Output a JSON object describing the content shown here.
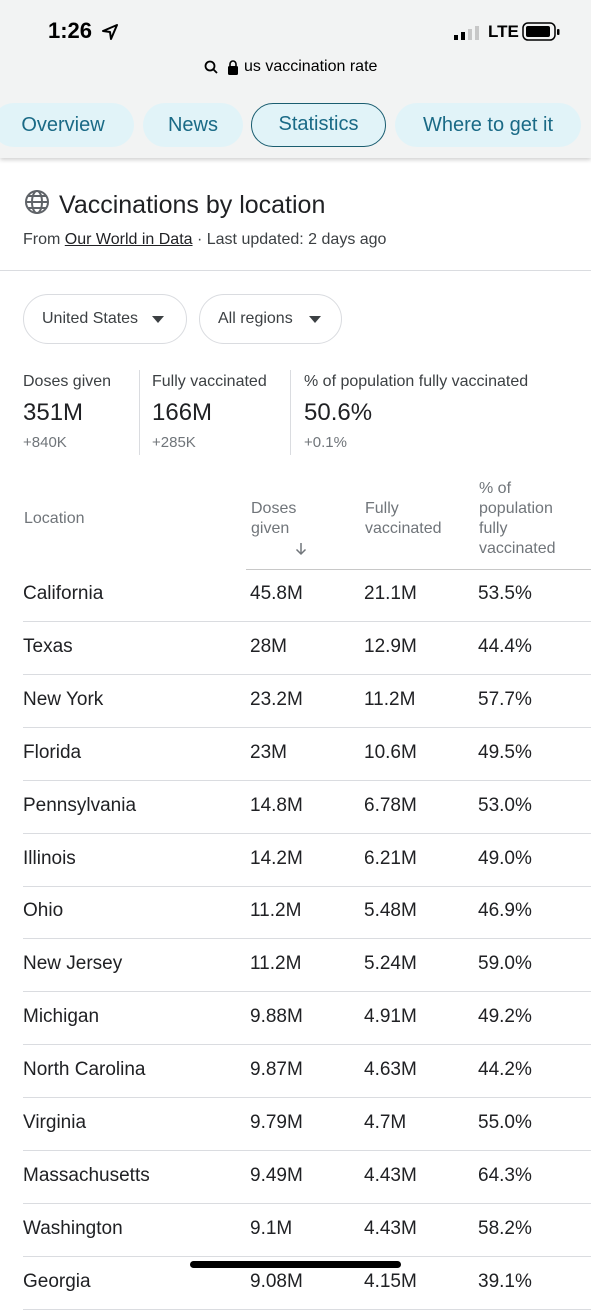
{
  "status_bar": {
    "time": "1:26",
    "network": "LTE"
  },
  "address_bar": {
    "url": "us vaccination rate"
  },
  "tabs": [
    "Overview",
    "News",
    "Statistics",
    "Where to get it"
  ],
  "card": {
    "title": "Vaccinations by location",
    "source_prefix": "From",
    "source_link": "Our World in Data",
    "updated": "· Last updated: 2 days ago"
  },
  "filters": [
    "United States",
    "All regions"
  ],
  "summary": [
    {
      "label": "Doses given",
      "value": "351M",
      "change": "+840K"
    },
    {
      "label": "Fully vaccinated",
      "value": "166M",
      "change": "+285K"
    },
    {
      "label": "% of population fully vaccinated",
      "value": "50.6%",
      "change": "+0.1%"
    }
  ],
  "table": {
    "headers": [
      "Location",
      "Doses given",
      "Fully vaccinated",
      "% of population fully vaccinated"
    ],
    "rows": [
      [
        "California",
        "45.8M",
        "21.1M",
        "53.5%"
      ],
      [
        "Texas",
        "28M",
        "12.9M",
        "44.4%"
      ],
      [
        "New York",
        "23.2M",
        "11.2M",
        "57.7%"
      ],
      [
        "Florida",
        "23M",
        "10.6M",
        "49.5%"
      ],
      [
        "Pennsylvania",
        "14.8M",
        "6.78M",
        "53.0%"
      ],
      [
        "Illinois",
        "14.2M",
        "6.21M",
        "49.0%"
      ],
      [
        "Ohio",
        "11.2M",
        "5.48M",
        "46.9%"
      ],
      [
        "New Jersey",
        "11.2M",
        "5.24M",
        "59.0%"
      ],
      [
        "Michigan",
        "9.88M",
        "4.91M",
        "49.2%"
      ],
      [
        "North Carolina",
        "9.87M",
        "4.63M",
        "44.2%"
      ],
      [
        "Virginia",
        "9.79M",
        "4.7M",
        "55.0%"
      ],
      [
        "Massachusetts",
        "9.49M",
        "4.43M",
        "64.3%"
      ],
      [
        "Washington",
        "9.1M",
        "4.43M",
        "58.2%"
      ],
      [
        "Georgia",
        "9.08M",
        "4.15M",
        "39.1%"
      ]
    ]
  }
}
